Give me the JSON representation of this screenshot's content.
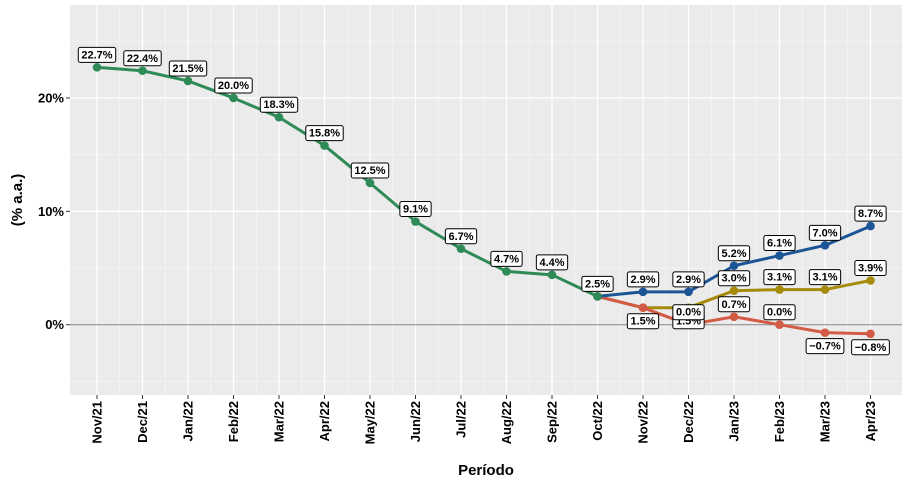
{
  "chart_data": {
    "type": "line",
    "title": "",
    "xlabel": "Período",
    "ylabel": "(% a.a.)",
    "categories": [
      "Nov/21",
      "Dec/21",
      "Jan/22",
      "Feb/22",
      "Mar/22",
      "Apr/22",
      "May/22",
      "Jun/22",
      "Jul/22",
      "Aug/22",
      "Sep/22",
      "Oct/22",
      "Nov/22",
      "Dec/22",
      "Jan/23",
      "Feb/23",
      "Mar/23",
      "Apr/23"
    ],
    "y_ticks": [
      0,
      10,
      20
    ],
    "y_tick_labels": [
      "0%",
      "10%",
      "20%"
    ],
    "ylim": [
      -6.2,
      28.2
    ],
    "grid": true,
    "legend": "none",
    "series": [
      {
        "color": "#2E8B57",
        "values": [
          22.7,
          22.4,
          21.5,
          20.0,
          18.3,
          15.8,
          12.5,
          9.1,
          6.7,
          4.7,
          4.4,
          2.5,
          null,
          null,
          null,
          null,
          null,
          null
        ],
        "labels": [
          "22.7%",
          "22.4%",
          "21.5%",
          "20.0%",
          "18.3%",
          "15.8%",
          "12.5%",
          "9.1%",
          "6.7%",
          "4.7%",
          "4.4%",
          "2.5%",
          "",
          "",
          "",
          "",
          "",
          ""
        ]
      },
      {
        "color": "#A68A0A",
        "values": [
          null,
          null,
          null,
          null,
          null,
          null,
          null,
          null,
          null,
          null,
          null,
          2.5,
          1.5,
          1.5,
          3.0,
          3.1,
          3.1,
          3.9
        ],
        "labels": [
          "",
          "",
          "",
          "",
          "",
          "",
          "",
          "",
          "",
          "",
          "",
          "",
          "1.5%",
          "1.5%",
          "3.0%",
          "3.1%",
          "3.1%",
          "3.9%"
        ]
      },
      {
        "color": "#D35B45",
        "values": [
          null,
          null,
          null,
          null,
          null,
          null,
          null,
          null,
          null,
          null,
          null,
          2.5,
          1.5,
          0.0,
          0.7,
          0.0,
          -0.7,
          -0.8
        ],
        "labels": [
          "",
          "",
          "",
          "",
          "",
          "",
          "",
          "",
          "",
          "",
          "",
          "",
          "",
          "0.0%",
          "0.7%",
          "0.0%",
          "−0.7%",
          "−0.8%"
        ]
      },
      {
        "color": "#1C5596",
        "values": [
          null,
          null,
          null,
          null,
          null,
          null,
          null,
          null,
          null,
          null,
          null,
          2.5,
          2.9,
          2.9,
          5.2,
          6.1,
          7.0,
          8.7
        ],
        "labels": [
          "",
          "",
          "",
          "",
          "",
          "",
          "",
          "",
          "",
          "",
          "",
          "",
          "2.9%",
          "2.9%",
          "5.2%",
          "6.1%",
          "7.0%",
          "8.7%"
        ]
      }
    ]
  }
}
